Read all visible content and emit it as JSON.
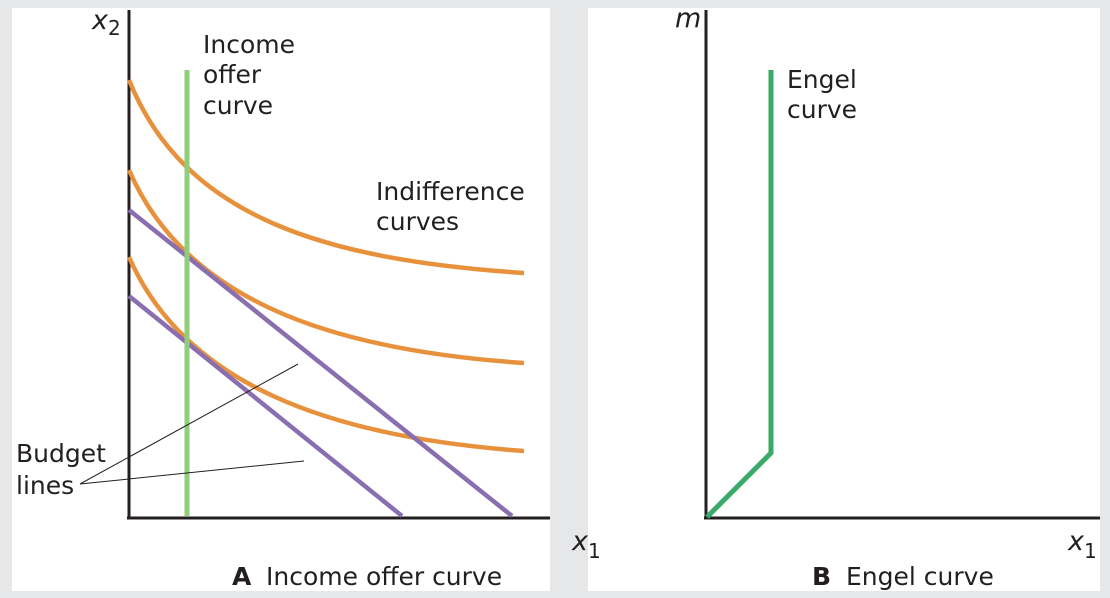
{
  "panel_a": {
    "axis_y_label": "x",
    "axis_y_sub": "2",
    "axis_x_label": "x",
    "axis_x_sub": "1",
    "label_income_offer": [
      "Income",
      "offer",
      "curve"
    ],
    "label_indifference": [
      "Indifference",
      "curves"
    ],
    "label_budget": [
      "Budget",
      "lines"
    ],
    "caption_letter": "A",
    "caption_text": "Income offer curve"
  },
  "panel_b": {
    "axis_y_label": "m",
    "axis_x_label": "x",
    "axis_x_sub": "1",
    "label_engel": [
      "Engel",
      "curve"
    ],
    "caption_letter": "B",
    "caption_text": "Engel curve"
  },
  "colors": {
    "indifference": "#e8913c",
    "budget": "#8a6fb0",
    "income_offer": "#8fce7a",
    "engel": "#3aa96a",
    "axis": "#231f20",
    "panel_bg": "#ffffff",
    "page_bg": "#e6e7e8"
  }
}
